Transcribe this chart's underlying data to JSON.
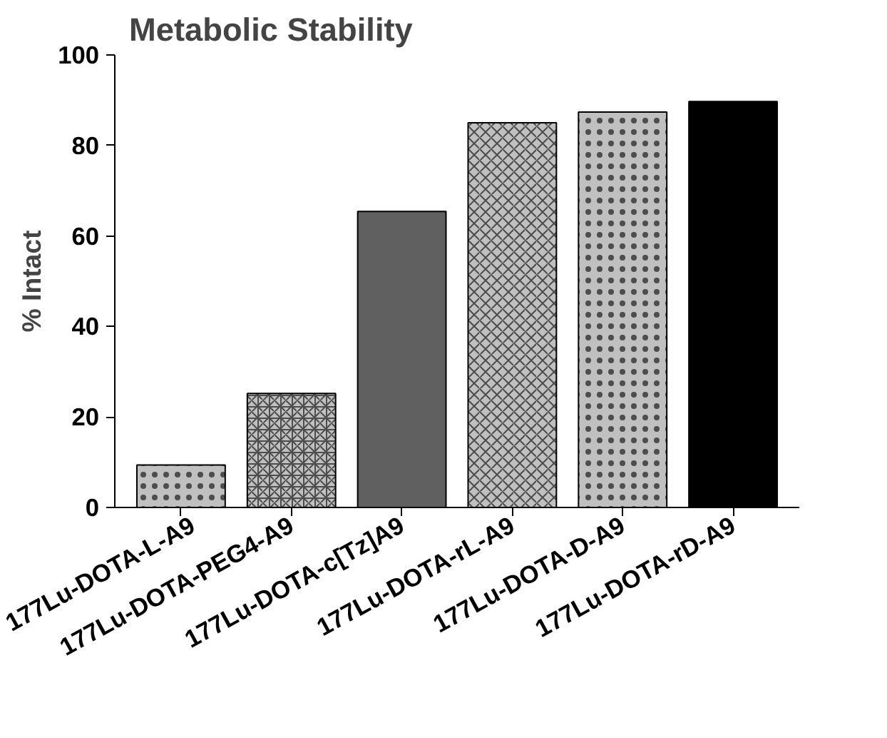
{
  "chart_data": {
    "type": "bar",
    "title": "Metabolic Stability",
    "ylabel": "% Intact",
    "categories": [
      "177Lu-DOTA-L-A9",
      "177Lu-DOTA-PEG4-A9",
      "177Lu-DOTA-c[Tz]A9",
      "177Lu-DOTA-rL-A9",
      "177Lu-DOTA-D-A9",
      "177Lu-DOTA-rD-A9"
    ],
    "values": [
      9.4,
      25.2,
      65.4,
      85.0,
      87.4,
      89.7
    ],
    "colors": [
      "#c0c0c0",
      "#c0c0c0",
      "#606060",
      "#c0c0c0",
      "#c0c0c0",
      "#000000"
    ],
    "ylim": [
      0,
      100
    ],
    "yticks": [
      0,
      20,
      40,
      60,
      80,
      100
    ],
    "grid": false
  }
}
